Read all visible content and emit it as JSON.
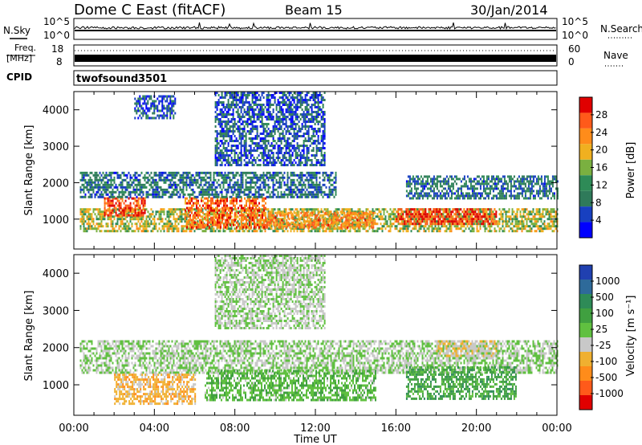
{
  "header": {
    "title": "Dome C East (fitACF)",
    "beam": "Beam 15",
    "date": "30/Jan/2014"
  },
  "noise_panel": {
    "left_label": "N.Sky",
    "left_ticks": [
      "10^5",
      "10^0"
    ],
    "right_label": "N.Search",
    "right_ticks": [
      "10^5",
      "10^0"
    ],
    "right_legend_style": "dotted"
  },
  "freq_panel": {
    "left_label_line1": "Freq.",
    "left_label_line2": "[MHz]",
    "left_ticks": [
      "18",
      "8"
    ],
    "right_label": "Nave",
    "right_ticks": [
      "60",
      "0"
    ],
    "right_legend_style": "dotted"
  },
  "cpid_panel": {
    "label": "CPID",
    "program": "twofsound",
    "id": "3501"
  },
  "power_panel": {
    "ylabel": "Slant Range [km]",
    "colorbar_label": "Power [dB]",
    "colorbar_ticks": [
      "28",
      "24",
      "20",
      "16",
      "12",
      "8",
      "4"
    ],
    "colors": [
      "#e00000",
      "#ff5a1a",
      "#ff8c1a",
      "#f0b020",
      "#7ab040",
      "#2e8b57",
      "#2f7a5a",
      "#1840c0",
      "#0000ff"
    ]
  },
  "velocity_panel": {
    "ylabel": "Slant Range [km]",
    "colorbar_label": "Velocity [m s⁻¹]",
    "colorbar_ticks": [
      "1000",
      "500",
      "100",
      "25",
      "-25",
      "-100",
      "-500",
      "-1000"
    ],
    "colors": [
      "#2040b0",
      "#2e6a9a",
      "#2e8b57",
      "#40a040",
      "#60c040",
      "#c8c8c8",
      "#f0b030",
      "#ff8c1a",
      "#ff5a1a",
      "#e00000"
    ]
  },
  "x_axis": {
    "label": "Time UT"
  },
  "chart_data": [
    {
      "type": "heatmap",
      "title": "Power [dB]",
      "xlabel": "",
      "ylabel": "Slant Range [km]",
      "x_ticks": [
        "00:00",
        "04:00",
        "08:00",
        "12:00",
        "16:00",
        "20:00",
        "00:00"
      ],
      "xlim": [
        0,
        24
      ],
      "ylim": [
        180,
        4500
      ],
      "y_ticks": [
        1000,
        2000,
        3000,
        4000
      ],
      "colorbar": {
        "label": "Power [dB]",
        "ticks": [
          28,
          24,
          20,
          16,
          12,
          8,
          4
        ],
        "range": [
          0,
          30
        ]
      },
      "regions": [
        {
          "time_start": 0.3,
          "time_end": 24.0,
          "range_start": 700,
          "range_end": 1300,
          "power_db": 16
        },
        {
          "time_start": 1.5,
          "time_end": 3.5,
          "range_start": 1100,
          "range_end": 1600,
          "power_db": 26
        },
        {
          "time_start": 5.5,
          "time_end": 9.5,
          "range_start": 800,
          "range_end": 1600,
          "power_db": 24
        },
        {
          "time_start": 9.5,
          "time_end": 15.0,
          "range_start": 800,
          "range_end": 1200,
          "power_db": 22
        },
        {
          "time_start": 16.0,
          "time_end": 21.0,
          "range_start": 850,
          "range_end": 1300,
          "power_db": 26
        },
        {
          "time_start": 0.3,
          "time_end": 13.0,
          "range_start": 1600,
          "range_end": 2300,
          "power_db": 8
        },
        {
          "time_start": 16.5,
          "time_end": 24.0,
          "range_start": 1600,
          "range_end": 2200,
          "power_db": 8
        },
        {
          "time_start": 7.0,
          "time_end": 12.5,
          "range_start": 2500,
          "range_end": 4500,
          "power_db": 6
        },
        {
          "time_start": 3.0,
          "time_end": 5.0,
          "range_start": 3800,
          "range_end": 4400,
          "power_db": 6
        }
      ]
    },
    {
      "type": "heatmap",
      "title": "Velocity [m s⁻¹]",
      "xlabel": "Time UT",
      "ylabel": "Slant Range [km]",
      "x_ticks": [
        "00:00",
        "04:00",
        "08:00",
        "12:00",
        "16:00",
        "20:00",
        "00:00"
      ],
      "xlim": [
        0,
        24
      ],
      "ylim": [
        180,
        4500
      ],
      "y_ticks": [
        1000,
        2000,
        3000,
        4000
      ],
      "colorbar": {
        "label": "Velocity [m s⁻¹]",
        "ticks": [
          1000,
          500,
          100,
          25,
          -25,
          -100,
          -500,
          -1000
        ]
      },
      "regions": [
        {
          "time_start": 0.3,
          "time_end": 24.0,
          "range_start": 1300,
          "range_end": 2200,
          "velocity": 0
        },
        {
          "time_start": 2.0,
          "time_end": 6.0,
          "range_start": 500,
          "range_end": 1300,
          "velocity": -300
        },
        {
          "time_start": 6.5,
          "time_end": 15.0,
          "range_start": 600,
          "range_end": 1400,
          "velocity": 150
        },
        {
          "time_start": 16.5,
          "time_end": 22.0,
          "range_start": 600,
          "range_end": 1500,
          "velocity": 300
        },
        {
          "time_start": 18.0,
          "time_end": 21.0,
          "range_start": 1800,
          "range_end": 2200,
          "velocity": -150
        },
        {
          "time_start": 7.0,
          "time_end": 12.5,
          "range_start": 2500,
          "range_end": 4500,
          "velocity": -20
        }
      ]
    }
  ]
}
